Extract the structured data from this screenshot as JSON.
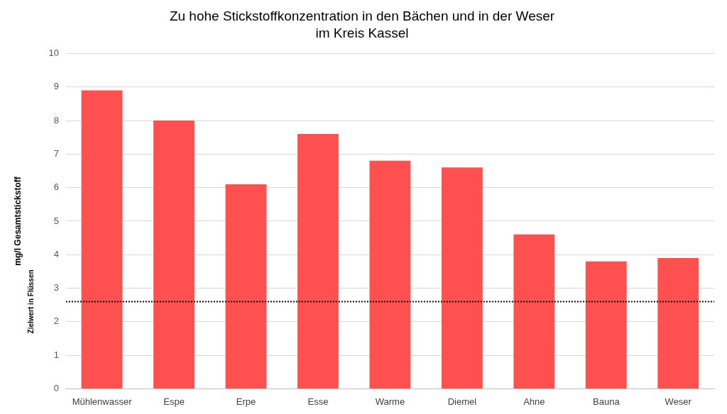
{
  "chart_data": {
    "type": "bar",
    "title": [
      "Zu hohe Stickstoffkonzentration in den Bächen und in der Weser",
      "im Kreis Kassel"
    ],
    "y_label": "mg/l Gesamtstickstoff",
    "categories": [
      "Mühlenwasser",
      "Espe",
      "Erpe",
      "Esse",
      "Warme",
      "Diemel",
      "Ahne",
      "Bauna",
      "Weser"
    ],
    "values": [
      8.9,
      8.0,
      6.1,
      7.6,
      6.8,
      6.6,
      4.6,
      3.8,
      3.9
    ],
    "color": "#ff5050",
    "ylim": [
      0,
      10
    ],
    "yticks": [
      0,
      1,
      2,
      3,
      4,
      5,
      6,
      7,
      8,
      9,
      10
    ],
    "grid": true,
    "reference_lines": [
      {
        "value": 2.6,
        "label": "Zielwert in Flüssen"
      }
    ]
  }
}
